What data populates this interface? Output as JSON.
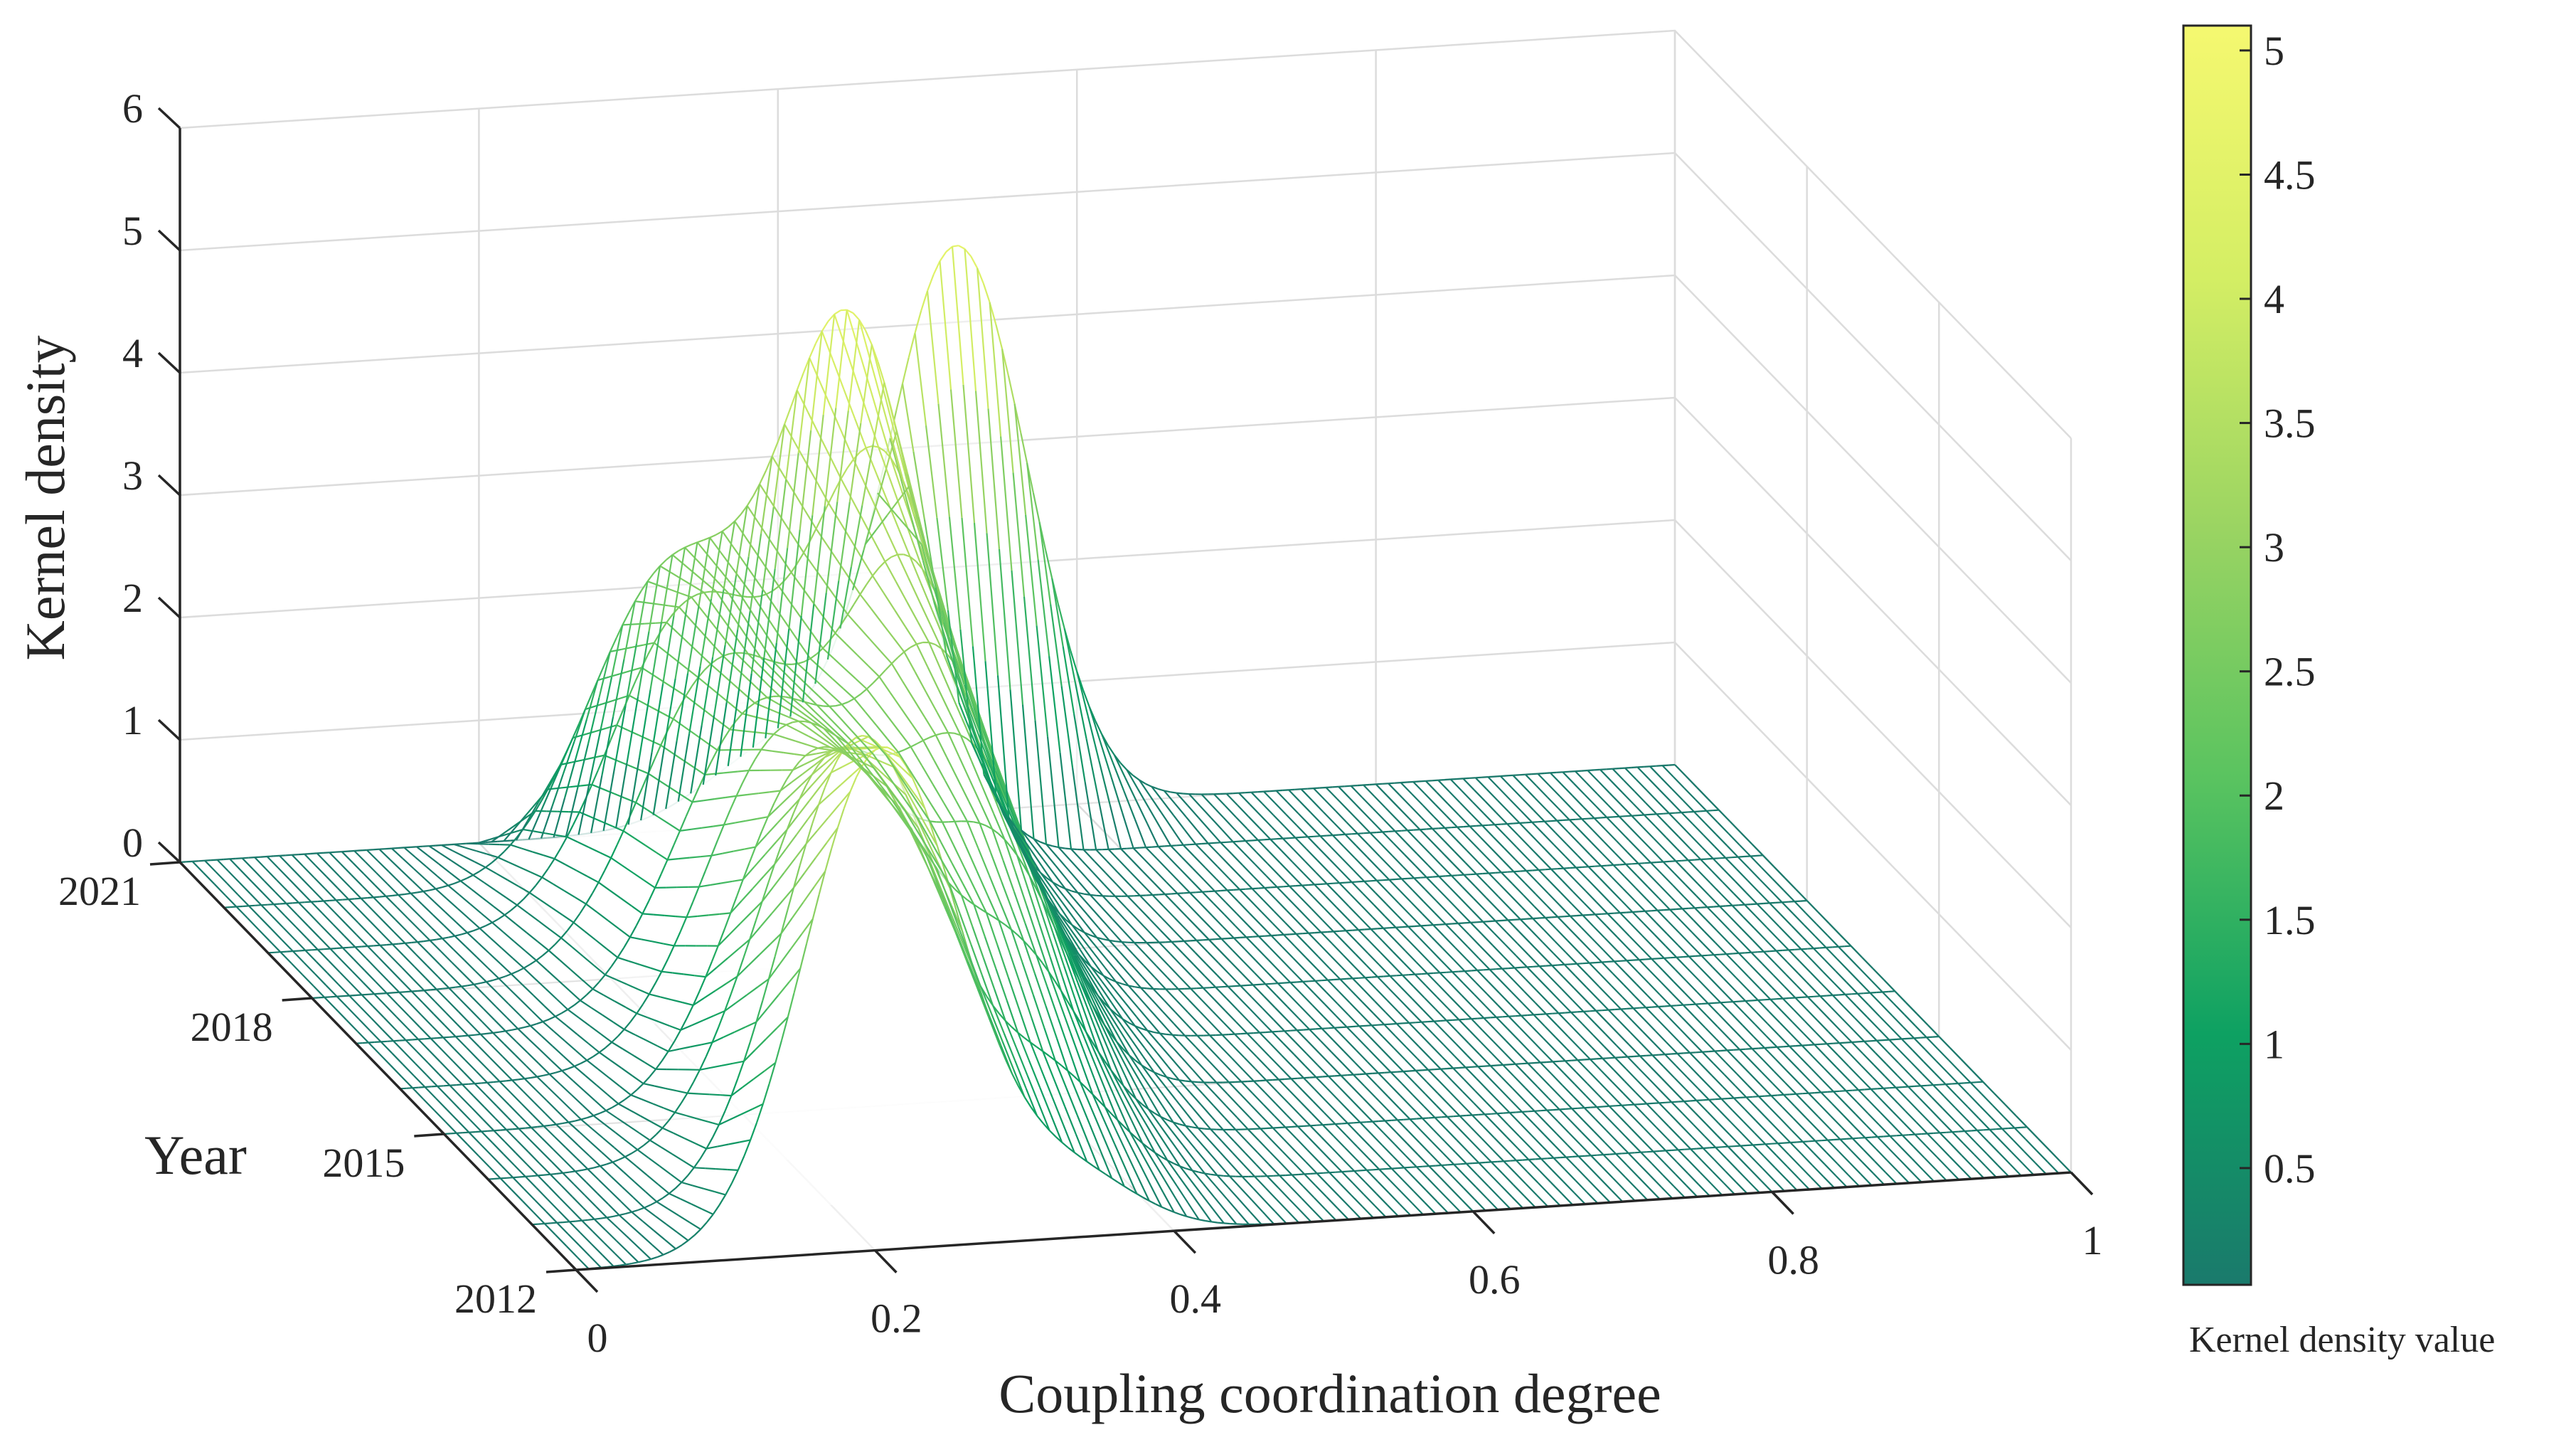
{
  "chart_data": {
    "type": "waterfall-3d",
    "title": "",
    "xlabel": "Coupling coordination degree",
    "ylabel": "Year",
    "zlabel": "Kernel density",
    "x_ticks": [
      "0",
      "0.2",
      "0.4",
      "0.6",
      "0.8",
      "1"
    ],
    "y_ticks": [
      "2012",
      "2015",
      "2018",
      "2021"
    ],
    "z_ticks": [
      "0",
      "1",
      "2",
      "3",
      "4",
      "5",
      "6"
    ],
    "xlim": [
      0,
      1
    ],
    "ylim": [
      2012,
      2021
    ],
    "zlim": [
      0,
      6
    ],
    "colormap": [
      "#1a7a6c",
      "#0ea162",
      "#59c360",
      "#9ad462",
      "#d4ee64",
      "#f5f870"
    ],
    "colorbar": {
      "label": "Kernel density value",
      "range": [
        0.03,
        5.1
      ],
      "ticks": [
        "0.5",
        "1",
        "1.5",
        "2",
        "2.5",
        "3",
        "3.5",
        "4",
        "4.5",
        "5"
      ]
    },
    "series": [
      {
        "name": "2012",
        "year": 2012,
        "peaks": [
          {
            "mu": 0.205,
            "sigma": 0.052,
            "amp": 4.1
          },
          {
            "mu": 0.33,
            "sigma": 0.045,
            "amp": 0.5
          }
        ]
      },
      {
        "name": "2013",
        "year": 2013,
        "peaks": [
          {
            "mu": 0.22,
            "sigma": 0.052,
            "amp": 3.8
          },
          {
            "mu": 0.345,
            "sigma": 0.045,
            "amp": 0.9
          }
        ]
      },
      {
        "name": "2014",
        "year": 2014,
        "peaks": [
          {
            "mu": 0.235,
            "sigma": 0.055,
            "amp": 3.3
          },
          {
            "mu": 0.355,
            "sigma": 0.045,
            "amp": 1.4
          }
        ]
      },
      {
        "name": "2015",
        "year": 2015,
        "peaks": [
          {
            "mu": 0.25,
            "sigma": 0.055,
            "amp": 2.9
          },
          {
            "mu": 0.37,
            "sigma": 0.045,
            "amp": 1.9
          }
        ]
      },
      {
        "name": "2016",
        "year": 2016,
        "peaks": [
          {
            "mu": 0.26,
            "sigma": 0.055,
            "amp": 2.7
          },
          {
            "mu": 0.38,
            "sigma": 0.046,
            "amp": 2.3
          }
        ]
      },
      {
        "name": "2017",
        "year": 2017,
        "peaks": [
          {
            "mu": 0.27,
            "sigma": 0.055,
            "amp": 2.5
          },
          {
            "mu": 0.39,
            "sigma": 0.046,
            "amp": 2.7
          }
        ]
      },
      {
        "name": "2018",
        "year": 2018,
        "peaks": [
          {
            "mu": 0.275,
            "sigma": 0.055,
            "amp": 2.5
          },
          {
            "mu": 0.4,
            "sigma": 0.046,
            "amp": 3.1
          }
        ]
      },
      {
        "name": "2019",
        "year": 2019,
        "peaks": [
          {
            "mu": 0.285,
            "sigma": 0.055,
            "amp": 2.6
          },
          {
            "mu": 0.41,
            "sigma": 0.046,
            "amp": 3.6
          }
        ]
      },
      {
        "name": "2020",
        "year": 2020,
        "peaks": [
          {
            "mu": 0.3,
            "sigma": 0.055,
            "amp": 2.5
          },
          {
            "mu": 0.42,
            "sigma": 0.046,
            "amp": 4.3
          }
        ]
      },
      {
        "name": "2021",
        "year": 2021,
        "peaks": [
          {
            "mu": 0.4,
            "sigma": 0.048,
            "amp": 0.6
          },
          {
            "mu": 0.52,
            "sigma": 0.047,
            "amp": 4.6
          }
        ]
      }
    ]
  }
}
